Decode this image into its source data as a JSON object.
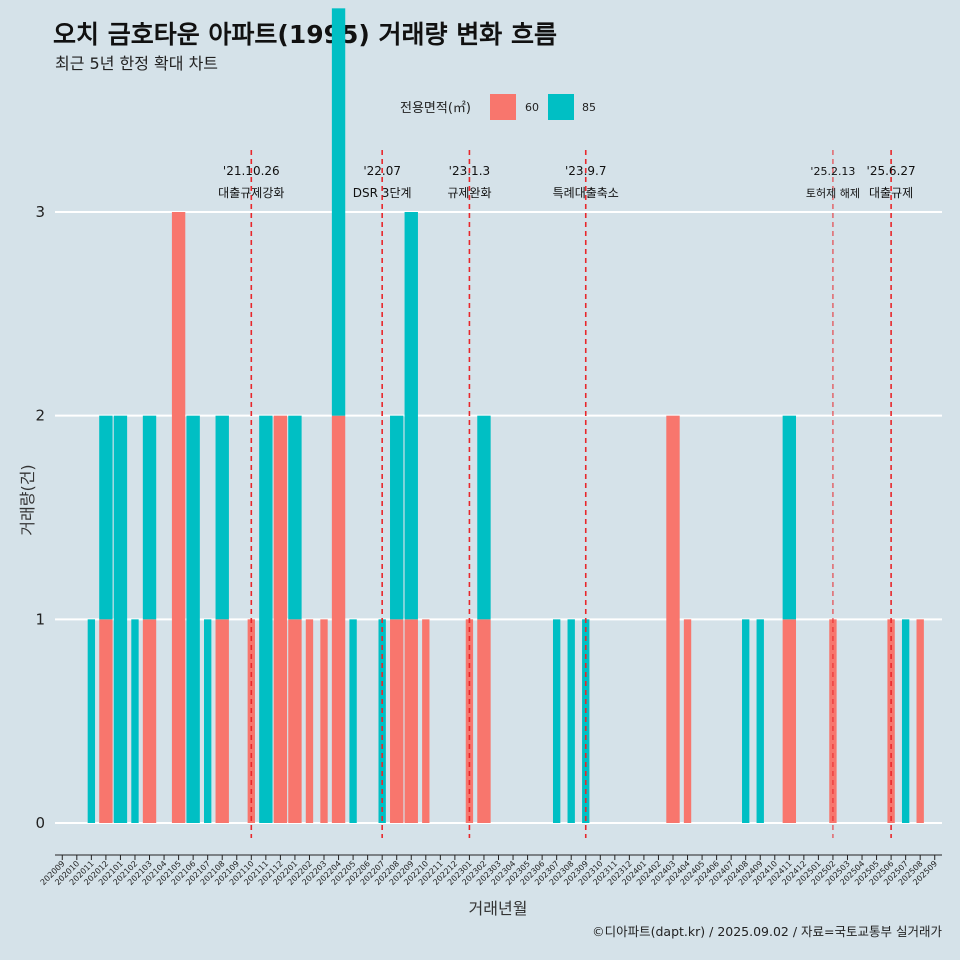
{
  "header": {
    "title": "오치 금호타운 아파트(1995) 거래량 변화 흐름",
    "subtitle": "최근 5년 한정 확대 차트"
  },
  "legend": {
    "title": "전용면적(㎡)",
    "items": [
      {
        "label": "60",
        "color": "#f8766d"
      },
      {
        "label": "85",
        "color": "#00bfc4"
      }
    ]
  },
  "caption": "©디아파트(dapt.kr) / 2025.09.02 / 자료=국토교통부 실거래가",
  "chart_data": {
    "type": "bar",
    "xlabel": "거래년월",
    "ylabel": "거래량(건)",
    "ylim": [
      0,
      3
    ],
    "yticks": [
      0,
      1,
      2,
      3
    ],
    "grid": true,
    "legend_position": "top",
    "categories": [
      "202009",
      "202010",
      "202011",
      "202012",
      "202101",
      "202102",
      "202103",
      "202104",
      "202105",
      "202106",
      "202107",
      "202108",
      "202109",
      "202110",
      "202111",
      "202112",
      "202201",
      "202202",
      "202203",
      "202204",
      "202205",
      "202206",
      "202207",
      "202208",
      "202209",
      "202210",
      "202211",
      "202212",
      "202301",
      "202302",
      "202303",
      "202304",
      "202305",
      "202306",
      "202307",
      "202308",
      "202309",
      "202310",
      "202311",
      "202312",
      "202401",
      "202402",
      "202403",
      "202404",
      "202405",
      "202406",
      "202407",
      "202408",
      "202409",
      "202410",
      "202411",
      "202412",
      "202501",
      "202502",
      "202503",
      "202504",
      "202505",
      "202506",
      "202507",
      "202508",
      "202509"
    ],
    "series": [
      {
        "name": "60",
        "color": "#f8766d",
        "values": [
          0,
          0,
          0,
          1,
          0,
          0,
          1,
          0,
          3,
          0,
          0,
          1,
          0,
          1,
          0,
          2,
          1,
          1,
          1,
          2,
          0,
          0,
          0,
          1,
          1,
          1,
          0,
          0,
          1,
          1,
          0,
          0,
          0,
          0,
          0,
          0,
          0,
          0,
          0,
          0,
          0,
          0,
          2,
          1,
          0,
          0,
          0,
          0,
          0,
          0,
          1,
          0,
          0,
          1,
          0,
          0,
          0,
          1,
          0,
          1,
          0
        ]
      },
      {
        "name": "85",
        "color": "#00bfc4",
        "values": [
          0,
          0,
          1,
          1,
          2,
          1,
          1,
          0,
          0,
          2,
          1,
          1,
          0,
          0,
          2,
          0,
          1,
          0,
          0,
          2,
          1,
          0,
          1,
          1,
          2,
          0,
          0,
          0,
          0,
          1,
          0,
          0,
          0,
          0,
          1,
          1,
          1,
          0,
          0,
          0,
          0,
          0,
          0,
          0,
          0,
          0,
          0,
          1,
          1,
          0,
          1,
          0,
          0,
          0,
          0,
          0,
          0,
          0,
          1,
          0,
          0
        ]
      }
    ],
    "events": [
      {
        "date": "'21.10.26",
        "label": "대출규제강화",
        "x": "202110"
      },
      {
        "date": "'22.07",
        "label": "DSR 3단계",
        "x": "202207"
      },
      {
        "date": "'23.1.3",
        "label": "규제완화",
        "x": "202301"
      },
      {
        "date": "'23.9.7",
        "label": "특례대출축소",
        "x": "202309"
      },
      {
        "date": "'25.2.13",
        "label": "토허제 해제",
        "x": "202502"
      },
      {
        "date": "'25.6.27",
        "label": "대출규제",
        "x": "202506"
      }
    ]
  }
}
